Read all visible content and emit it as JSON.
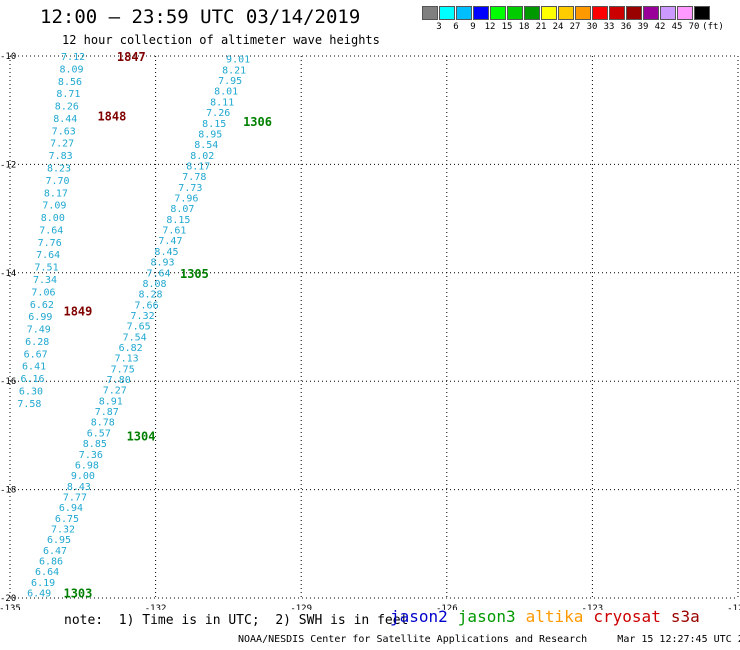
{
  "header": {
    "title": "12:00 – 23:59 UTC 03/14/2019",
    "subtitle": "12 hour collection of altimeter wave heights"
  },
  "colorbar": {
    "unit": "(ft)",
    "ticks": [
      "3",
      "6",
      "9",
      "12",
      "15",
      "18",
      "21",
      "24",
      "27",
      "30",
      "33",
      "36",
      "39",
      "42",
      "45",
      "70"
    ],
    "colors": [
      "#808080",
      "#00ffff",
      "#00bfff",
      "#0000ff",
      "#00ff00",
      "#00cc00",
      "#009900",
      "#ffff00",
      "#ffcc00",
      "#ff9900",
      "#ff0000",
      "#cc0000",
      "#990000",
      "#990099",
      "#cc99ff",
      "#ff99ff",
      "#000000"
    ]
  },
  "chart_data": {
    "type": "scatter",
    "xlim": [
      -135,
      -120
    ],
    "ylim": [
      -20,
      -10
    ],
    "x_ticks": [
      "-135",
      "-132",
      "-129",
      "-126",
      "-123",
      "-120"
    ],
    "y_ticks": [
      "-10",
      "-12",
      "-14",
      "-16",
      "-18",
      "-20"
    ],
    "grid": true,
    "value_color": "#20a8d0",
    "time_color_a": "#800000",
    "time_color_b": "#008000",
    "track_a": {
      "lon_start": -133.7,
      "lon_end": -134.6,
      "lat_start": -10.0,
      "lat_end": -16.4,
      "values": [
        "7.12",
        "8.09",
        "8.56",
        "8.71",
        "8.26",
        "8.44",
        "7.63",
        "7.27",
        "7.83",
        "8.23",
        "7.70",
        "8.17",
        "7.09",
        "8.00",
        "7.64",
        "7.76",
        "7.64",
        "7.51",
        "7.34",
        "7.06",
        "6.62",
        "6.99",
        "7.49",
        "6.28",
        "6.67",
        "6.41",
        "6.16",
        "6.30",
        "7.58"
      ],
      "times": [
        {
          "label": "1847",
          "lat": -10.0,
          "lon": -132.5
        },
        {
          "label": "1848",
          "lat": -11.1,
          "lon": -132.9
        },
        {
          "label": "1849",
          "lat": -14.7,
          "lon": -133.6
        }
      ]
    },
    "track_b": {
      "lon_start": -130.3,
      "lon_end": -134.4,
      "lat_start": -10.05,
      "lat_end": -19.9,
      "values": [
        "9.01",
        "8.21",
        "7.95",
        "8.01",
        "8.11",
        "7.26",
        "8.15",
        "8.95",
        "8.54",
        "8.02",
        "8.17",
        "7.78",
        "7.73",
        "7.96",
        "8.07",
        "8.15",
        "7.61",
        "7.47",
        "8.45",
        "8.93",
        "7.64",
        "8.08",
        "8.28",
        "7.66",
        "7.32",
        "7.65",
        "7.54",
        "6.82",
        "7.13",
        "7.75",
        "7.80",
        "7.27",
        "8.91",
        "7.87",
        "8.78",
        "6.57",
        "8.85",
        "7.36",
        "6.98",
        "9.00",
        "8.43",
        "7.77",
        "6.94",
        "6.75",
        "7.32",
        "6.95",
        "6.47",
        "6.86",
        "6.64",
        "6.19",
        "6.49"
      ],
      "times": [
        {
          "label": "1306",
          "lat": -11.2,
          "lon": -129.9
        },
        {
          "label": "1305",
          "lat": -14.0,
          "lon": -131.2
        },
        {
          "label": "1304",
          "lat": -17.0,
          "lon": -132.3
        },
        {
          "label": "1303",
          "lat": -19.9,
          "lon": -133.6
        }
      ]
    }
  },
  "note": "note:  1) Time is in UTC;  2) SWH is in feet",
  "legend": [
    {
      "name": "jason2",
      "color": "#0000cc"
    },
    {
      "name": "jason3",
      "color": "#009900"
    },
    {
      "name": "altika",
      "color": "#ff9900"
    },
    {
      "name": "cryosat",
      "color": "#cc0000"
    },
    {
      "name": "s3a",
      "color": "#990000"
    }
  ],
  "footer": "NOAA/NESDIS Center for Satellite Applications and Research     Mar 15 12:27:45 UTC 2019"
}
